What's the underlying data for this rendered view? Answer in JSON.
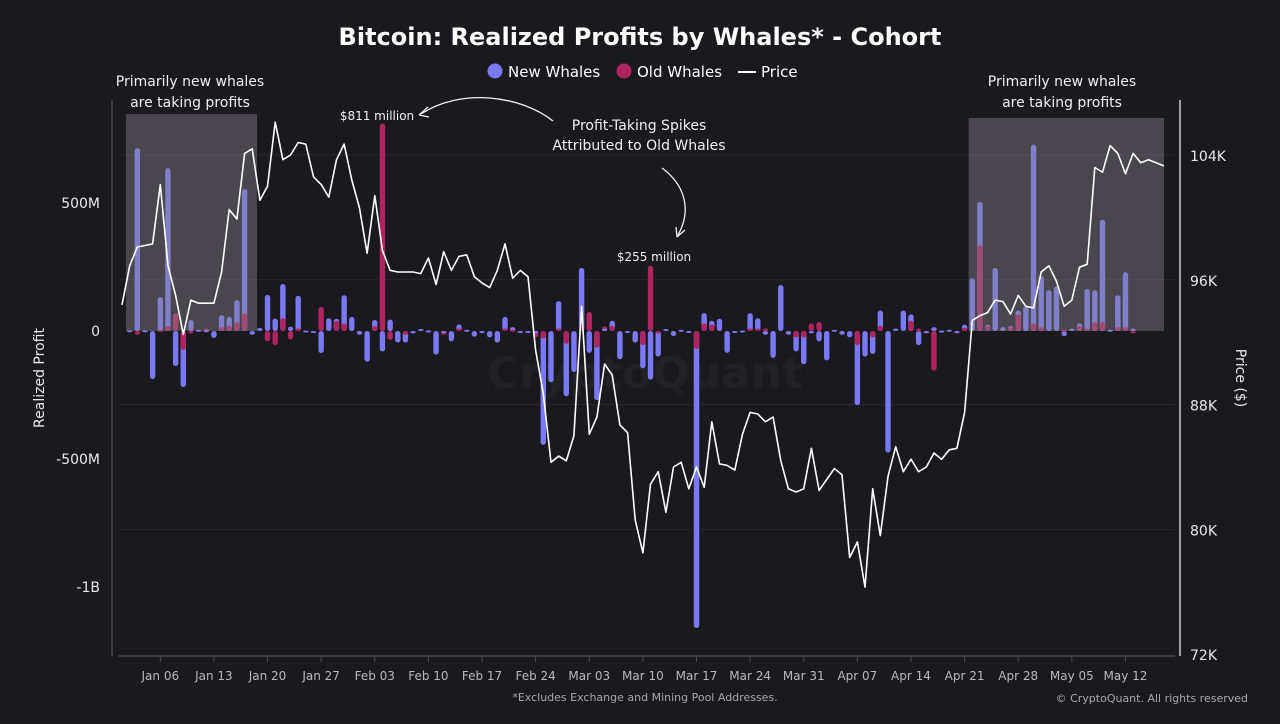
{
  "chart_data": {
    "type": "bar+line",
    "title": "Bitcoin: Realized Profits by Whales* - Cohort",
    "legend": {
      "placement": "top-center",
      "items": [
        "New Whales",
        "Old Whales",
        "Price"
      ]
    },
    "ylabel_left": "Realized Profit",
    "ylabel_right": "Price ($)",
    "yticks_left": [
      "500M",
      "0",
      "-500M",
      "-1B"
    ],
    "yticks_left_values": [
      500,
      0,
      -500,
      -1000
    ],
    "ylim_left_millions": [
      -1270,
      880
    ],
    "yticks_right": [
      "104K",
      "96K",
      "88K",
      "80K",
      "72K"
    ],
    "yticks_right_values": [
      104,
      96,
      88,
      80,
      72
    ],
    "ylim_right_thousands": [
      72,
      110
    ],
    "xticks": [
      "Jan 06",
      "Jan 13",
      "Jan 20",
      "Jan 27",
      "Feb 03",
      "Feb 10",
      "Feb 17",
      "Feb 24",
      "Mar 03",
      "Mar 10",
      "Mar 17",
      "Mar 24",
      "Mar 31",
      "Apr 07",
      "Apr 14",
      "Apr 21",
      "Apr 28",
      "May 05",
      "May 12"
    ],
    "grid": "horizontal, at right-axis ticks",
    "colors": {
      "new_whales": "#7b78f5",
      "old_whales": "#b0245f",
      "price": "#ffffff",
      "background": "#1a191e",
      "highlight": "#5a595e"
    },
    "x": [
      "Jan 01",
      "Jan 02",
      "Jan 03",
      "Jan 04",
      "Jan 05",
      "Jan 06",
      "Jan 07",
      "Jan 08",
      "Jan 09",
      "Jan 10",
      "Jan 11",
      "Jan 12",
      "Jan 13",
      "Jan 14",
      "Jan 15",
      "Jan 16",
      "Jan 17",
      "Jan 18",
      "Jan 19",
      "Jan 20",
      "Jan 21",
      "Jan 22",
      "Jan 23",
      "Jan 24",
      "Jan 25",
      "Jan 26",
      "Jan 27",
      "Jan 28",
      "Jan 29",
      "Jan 30",
      "Jan 31",
      "Feb 01",
      "Feb 02",
      "Feb 03",
      "Feb 04",
      "Feb 05",
      "Feb 06",
      "Feb 07",
      "Feb 08",
      "Feb 09",
      "Feb 10",
      "Feb 11",
      "Feb 12",
      "Feb 13",
      "Feb 14",
      "Feb 15",
      "Feb 16",
      "Feb 17",
      "Feb 18",
      "Feb 19",
      "Feb 20",
      "Feb 21",
      "Feb 22",
      "Feb 23",
      "Feb 24",
      "Feb 25",
      "Feb 26",
      "Feb 27",
      "Feb 28",
      "Mar 01",
      "Mar 02",
      "Mar 03",
      "Mar 04",
      "Mar 05",
      "Mar 06",
      "Mar 07",
      "Mar 08",
      "Mar 09",
      "Mar 10",
      "Mar 11",
      "Mar 12",
      "Mar 13",
      "Mar 14",
      "Mar 15",
      "Mar 16",
      "Mar 17",
      "Mar 18",
      "Mar 19",
      "Mar 20",
      "Mar 21",
      "Mar 22",
      "Mar 23",
      "Mar 24",
      "Mar 25",
      "Mar 26",
      "Mar 27",
      "Mar 28",
      "Mar 29",
      "Mar 30",
      "Mar 31",
      "Apr 01",
      "Apr 02",
      "Apr 03",
      "Apr 04",
      "Apr 05",
      "Apr 06",
      "Apr 07",
      "Apr 08",
      "Apr 09",
      "Apr 10",
      "Apr 11",
      "Apr 12",
      "Apr 13",
      "Apr 14",
      "Apr 15",
      "Apr 16",
      "Apr 17",
      "Apr 18",
      "Apr 19",
      "Apr 20",
      "Apr 21",
      "Apr 22",
      "Apr 23",
      "Apr 24",
      "Apr 25",
      "Apr 26",
      "Apr 27",
      "Apr 28",
      "Apr 29",
      "Apr 30",
      "May 01",
      "May 02",
      "May 03",
      "May 04",
      "May 05",
      "May 06",
      "May 07",
      "May 08",
      "May 09",
      "May 10",
      "May 11",
      "May 12",
      "May 13",
      "May 14",
      "May 15",
      "May 16",
      "May 17"
    ],
    "series": [
      {
        "name": "New Whales",
        "type": "bar",
        "unit": "USD millions",
        "values": [
          0,
          3,
          715,
          3,
          -188,
          133,
          637,
          -137,
          -219,
          43,
          5,
          3,
          -27,
          62,
          55,
          121,
          555,
          -15,
          12,
          141,
          49,
          184,
          17,
          138,
          2,
          -5,
          -86,
          50,
          48,
          140,
          55,
          -15,
          -120,
          43,
          -80,
          45,
          -45,
          -45,
          -10,
          8,
          2,
          -92,
          -5,
          -40,
          26,
          5,
          -22,
          -3,
          -25,
          -45,
          55,
          15,
          -3,
          -4,
          -10,
          -445,
          -200,
          117,
          -255,
          -160,
          247,
          -85,
          -270,
          10,
          40,
          -110,
          -8,
          -45,
          -146,
          -190,
          -100,
          8,
          -20,
          5,
          -3,
          -1161,
          70,
          40,
          48,
          -85,
          -2,
          2,
          70,
          50,
          -15,
          -105,
          180,
          -15,
          -80,
          -130,
          -10,
          -40,
          -115,
          5,
          -15,
          -25,
          -290,
          -100,
          -90,
          80,
          -475,
          10,
          80,
          65,
          -55,
          -3,
          15,
          2,
          5,
          -3,
          25,
          206,
          505,
          25,
          247,
          15,
          20,
          80,
          95,
          729,
          215,
          160,
          175,
          -20,
          10,
          30,
          165,
          160,
          435,
          5,
          140,
          230,
          10,
          0,
          0,
          0,
          0
        ]
      },
      {
        "name": "Old Whales",
        "type": "bar",
        "unit": "USD millions",
        "values": [
          0,
          0,
          -15,
          0,
          0,
          5,
          20,
          70,
          -74,
          -10,
          0,
          10,
          0,
          15,
          20,
          35,
          70,
          0,
          0,
          -40,
          -55,
          50,
          -33,
          10,
          0,
          0,
          95,
          0,
          40,
          30,
          0,
          0,
          0,
          20,
          811,
          -35,
          0,
          -15,
          0,
          0,
          3,
          0,
          -15,
          0,
          10,
          0,
          0,
          0,
          0,
          0,
          10,
          5,
          0,
          0,
          -25,
          -30,
          0,
          10,
          -50,
          0,
          30,
          75,
          -65,
          18,
          20,
          0,
          0,
          0,
          -55,
          255,
          -10,
          0,
          0,
          0,
          0,
          -70,
          30,
          25,
          0,
          0,
          0,
          0,
          10,
          10,
          10,
          0,
          0,
          0,
          -25,
          -25,
          30,
          35,
          0,
          0,
          0,
          0,
          -55,
          0,
          -25,
          20,
          0,
          0,
          0,
          40,
          10,
          -10,
          -155,
          0,
          0,
          -10,
          12,
          0,
          335,
          20,
          0,
          0,
          15,
          65,
          0,
          30,
          15,
          0,
          0,
          5,
          0,
          20,
          10,
          35,
          35,
          0,
          15,
          15,
          -10,
          0,
          0,
          0,
          0
        ]
      },
      {
        "name": "Price",
        "type": "line",
        "unit": "USD thousands",
        "values": [
          94.4,
          96.9,
          98.1,
          98.2,
          98.3,
          102.1,
          96.9,
          95.0,
          92.5,
          94.7,
          94.5,
          94.5,
          94.5,
          96.5,
          100.5,
          99.9,
          104.1,
          104.4,
          101.1,
          102.0,
          106.1,
          103.7,
          104.0,
          104.8,
          104.7,
          102.6,
          102.1,
          101.3,
          103.7,
          104.7,
          102.4,
          100.6,
          97.7,
          101.4,
          97.9,
          96.6,
          96.5,
          96.5,
          96.5,
          96.4,
          97.4,
          95.7,
          97.8,
          96.6,
          97.5,
          97.6,
          96.2,
          95.8,
          95.5,
          96.6,
          98.3,
          96.1,
          96.6,
          96.2,
          91.5,
          88.7,
          84.3,
          84.7,
          84.4,
          86.0,
          94.3,
          86.1,
          87.2,
          90.6,
          89.9,
          86.7,
          86.2,
          80.6,
          78.5,
          82.9,
          83.7,
          81.1,
          84.0,
          84.3,
          82.6,
          84.0,
          82.7,
          86.9,
          84.2,
          84.1,
          83.8,
          86.1,
          87.5,
          87.4,
          86.9,
          87.2,
          84.4,
          82.6,
          82.4,
          82.6,
          85.2,
          82.5,
          83.2,
          83.9,
          83.5,
          78.2,
          79.2,
          76.3,
          82.6,
          79.6,
          83.4,
          85.3,
          83.7,
          84.5,
          83.7,
          84.0,
          84.9,
          84.5,
          85.1,
          85.2,
          87.5,
          93.4,
          93.7,
          93.9,
          94.7,
          94.6,
          93.8,
          95.0,
          94.3,
          94.2,
          96.5,
          96.9,
          95.9,
          94.3,
          94.7,
          96.8,
          97.0,
          103.2,
          102.9,
          104.6,
          104.1,
          102.8,
          104.1,
          103.5,
          103.7,
          103.5,
          103.3
        ]
      }
    ],
    "highlights": [
      {
        "from": "Jan 01",
        "to": "Jan 18",
        "label_line1": "Primarily new whales",
        "label_line2": "are taking profits"
      },
      {
        "from": "Apr 21",
        "to": "May 16",
        "label_line1": "Primarily new whales",
        "label_line2": "are taking profits"
      }
    ],
    "annotations": {
      "spike1": "$811 million",
      "spike2": "$255 million",
      "note_line1": "Profit-Taking Spikes",
      "note_line2": "Attributed to Old Whales"
    },
    "footnote": "*Excludes Exchange and Mining Pool Addresses.",
    "copyright": "© CryptoQuant. All rights reserved",
    "watermark": "CryptoQuant"
  }
}
